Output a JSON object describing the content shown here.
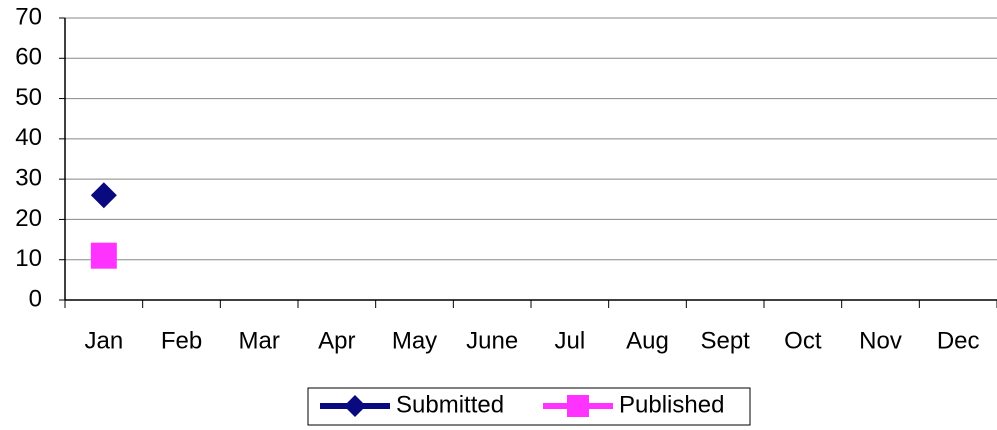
{
  "chart_data": {
    "type": "line",
    "categories": [
      "Jan",
      "Feb",
      "Mar",
      "Apr",
      "May",
      "June",
      "Jul",
      "Aug",
      "Sept",
      "Oct",
      "Nov",
      "Dec"
    ],
    "series": [
      {
        "name": "Submitted",
        "color": "#0a0a80",
        "marker": "diamond",
        "values": [
          26,
          null,
          null,
          null,
          null,
          null,
          null,
          null,
          null,
          null,
          null,
          null
        ]
      },
      {
        "name": "Published",
        "color": "#ff33ff",
        "marker": "square",
        "values": [
          11,
          null,
          null,
          null,
          null,
          null,
          null,
          null,
          null,
          null,
          null,
          null
        ]
      }
    ],
    "ylim": [
      0,
      70
    ],
    "yticks": [
      0,
      10,
      20,
      30,
      40,
      50,
      60,
      70
    ],
    "grid": true,
    "legend": "bottom"
  }
}
